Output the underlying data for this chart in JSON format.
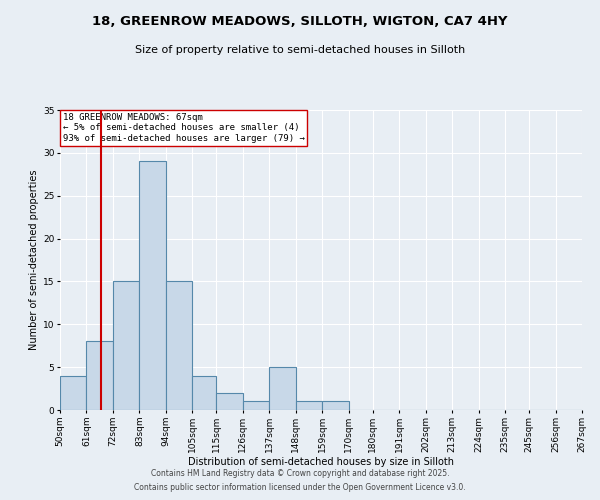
{
  "title_line1": "18, GREENROW MEADOWS, SILLOTH, WIGTON, CA7 4HY",
  "title_line2": "Size of property relative to semi-detached houses in Silloth",
  "xlabel": "Distribution of semi-detached houses by size in Silloth",
  "ylabel": "Number of semi-detached properties",
  "bin_edges": [
    50,
    61,
    72,
    83,
    94,
    105,
    115,
    126,
    137,
    148,
    159,
    170,
    180,
    191,
    202,
    213,
    224,
    235,
    245,
    256,
    267
  ],
  "bar_heights": [
    4,
    8,
    15,
    29,
    15,
    4,
    2,
    1,
    5,
    1,
    1,
    0,
    0,
    0,
    0,
    0,
    0,
    0,
    0,
    0
  ],
  "bar_color": "#c8d8e8",
  "bar_edge_color": "#5588aa",
  "bar_linewidth": 0.8,
  "property_value": 67,
  "red_line_color": "#cc0000",
  "annotation_text": "18 GREENROW MEADOWS: 67sqm\n← 5% of semi-detached houses are smaller (4)\n93% of semi-detached houses are larger (79) →",
  "annotation_fontsize": 6.5,
  "ylim": [
    0,
    35
  ],
  "yticks": [
    0,
    5,
    10,
    15,
    20,
    25,
    30,
    35
  ],
  "background_color": "#e8eef4",
  "axes_bg_color": "#e8eef4",
  "grid_color": "#ffffff",
  "footer_line1": "Contains HM Land Registry data © Crown copyright and database right 2025.",
  "footer_line2": "Contains public sector information licensed under the Open Government Licence v3.0.",
  "title_fontsize": 9.5,
  "subtitle_fontsize": 8,
  "axis_label_fontsize": 7,
  "tick_fontsize": 6.5,
  "footer_fontsize": 5.5
}
